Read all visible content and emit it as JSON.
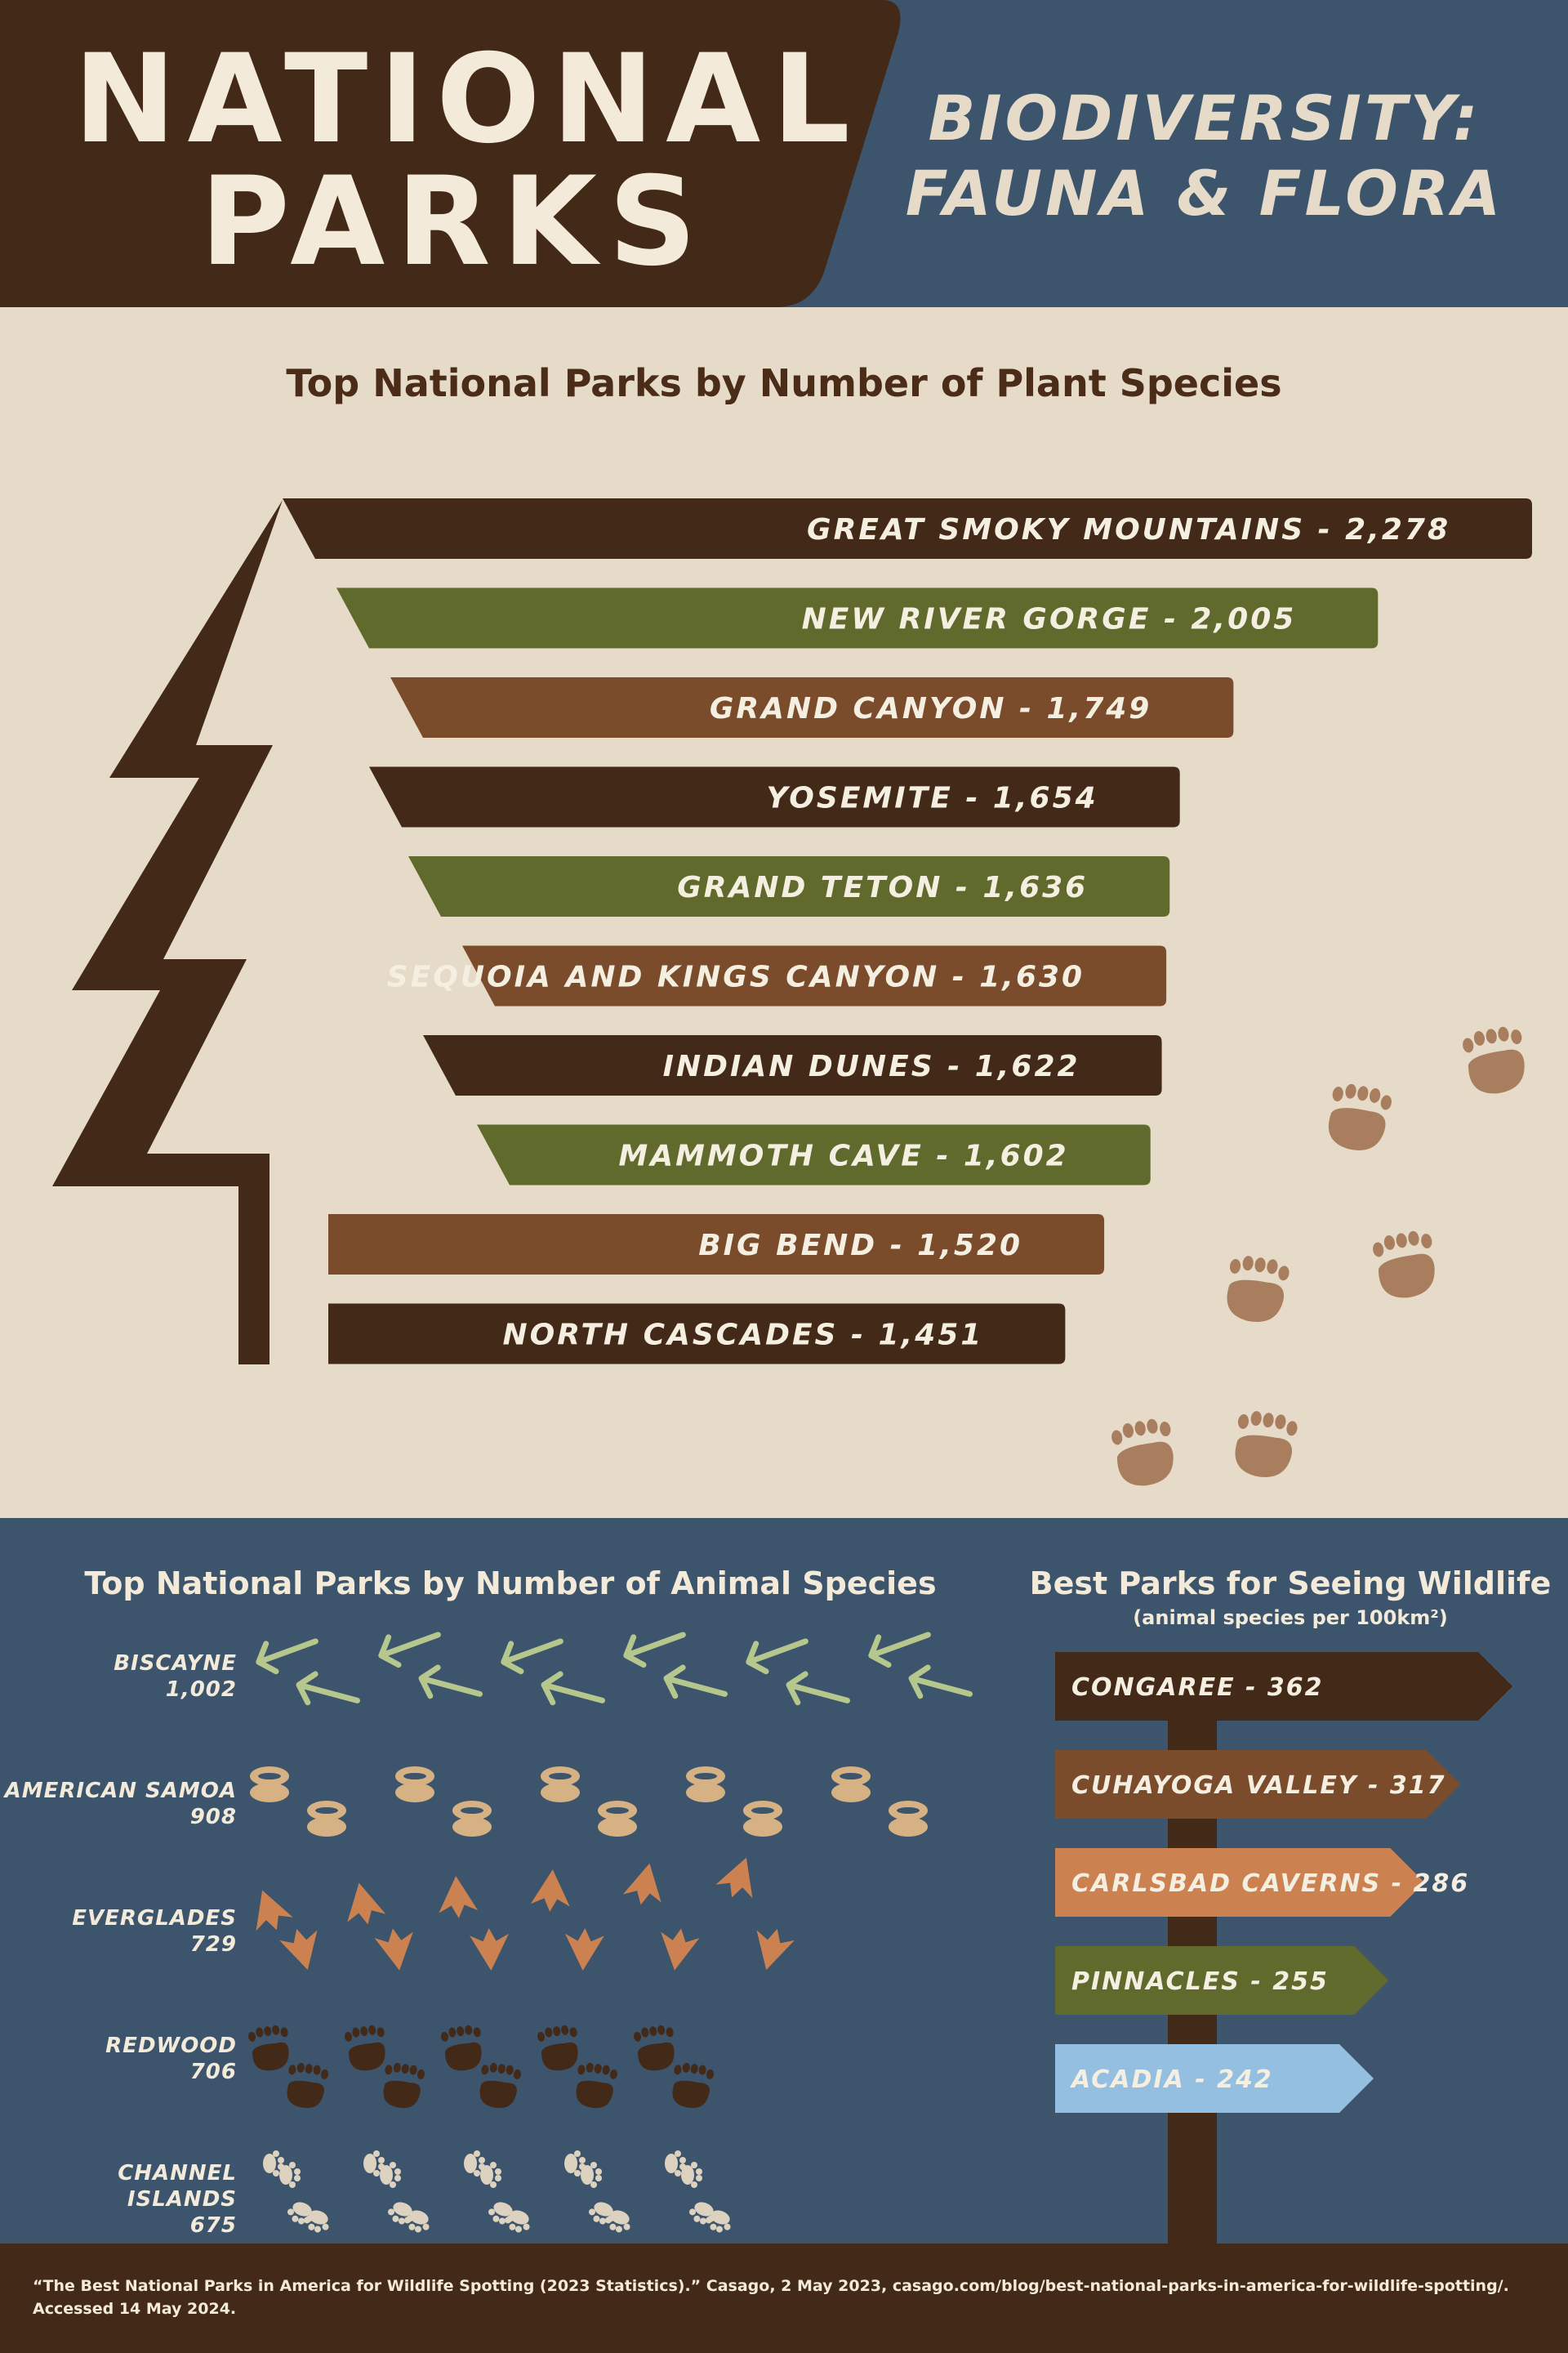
{
  "header": {
    "logo_line1": "NATIONAL",
    "logo_line2": "PARKS",
    "subtitle_line1": "BIODIVERSITY:",
    "subtitle_line2": "FAUNA & FLORA"
  },
  "colors": {
    "dark_brown": "#432918",
    "olive": "#5f6a2c",
    "brown": "#7a4c2c",
    "blue": "#3c546c",
    "cream": "#e5dbc8",
    "orange": "#cc8151",
    "light_blue": "#94bfe0",
    "tan": "#c9a77b"
  },
  "chart_data": [
    {
      "type": "bar",
      "title": "Top National Parks by Number of Plant Species",
      "categories": [
        "GREAT SMOKY MOUNTAINS",
        "NEW RIVER GORGE",
        "GRAND CANYON",
        "YOSEMITE",
        "GRAND TETON",
        "SEQUOIA AND KINGS CANYON",
        "INDIAN DUNES",
        "MAMMOTH CAVE",
        "BIG BEND",
        "NORTH CASCADES"
      ],
      "values": [
        2278,
        2005,
        1749,
        1654,
        1636,
        1630,
        1622,
        1602,
        1520,
        1451
      ],
      "value_labels": [
        "2,278",
        "2,005",
        "1,749",
        "1,654",
        "1,636",
        "1,630",
        "1,622",
        "1,602",
        "1,520",
        "1,451"
      ],
      "colors": [
        "dark_brown",
        "olive",
        "brown",
        "dark_brown",
        "olive",
        "brown",
        "dark_brown",
        "olive",
        "brown",
        "dark_brown"
      ]
    },
    {
      "type": "bar",
      "title": "Top National Parks by Number of Animal Species",
      "categories": [
        "BISCAYNE",
        "AMERICAN SAMOA",
        "EVERGLADES",
        "REDWOOD",
        "CHANNEL ISLANDS"
      ],
      "values": [
        1002,
        908,
        729,
        706,
        675
      ],
      "value_labels": [
        "1,002",
        "908",
        "729",
        "706",
        "675"
      ],
      "icons": [
        "bird-track-icon",
        "hoof-print-icon",
        "webbed-foot-icon",
        "bear-paw-icon",
        "small-track-icon"
      ]
    },
    {
      "type": "bar",
      "title": "Best Parks for Seeing Wildlife",
      "subtitle": "(animal species per 100km²)",
      "categories": [
        "CONGAREE",
        "CUHAYOGA VALLEY",
        "CARLSBAD CAVERNS",
        "PINNACLES",
        "ACADIA"
      ],
      "values": [
        362,
        317,
        286,
        255,
        242
      ],
      "colors": [
        "dark_brown",
        "brown",
        "orange",
        "olive",
        "light_blue"
      ]
    }
  ],
  "footer": {
    "citation": "“The Best National Parks in America for Wildlife Spotting (2023 Statistics).” Casago, 2 May 2023, casago.com/blog/best-national-parks-in-america-for-wildlife-spotting/. Accessed 14 May 2024."
  }
}
